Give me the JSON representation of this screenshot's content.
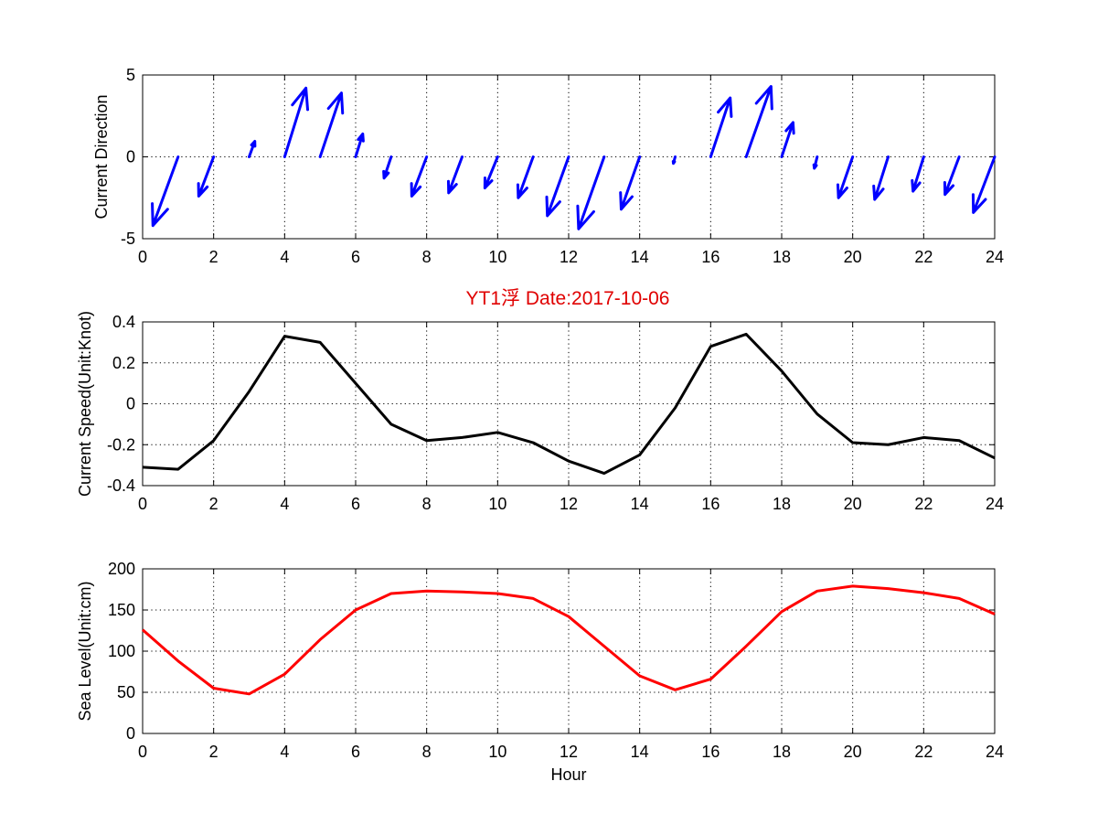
{
  "colors": {
    "title": "#e00000",
    "arrows": "#0000ff",
    "speed_line": "#000000",
    "sea_level_line": "#ff0000"
  },
  "title": "YT1浮    Date:2017-10-06",
  "chart_data": [
    {
      "type": "quiver",
      "ylabel": "Current Direction",
      "xlabel": "",
      "xlim": [
        0,
        24
      ],
      "ylim": [
        -5,
        5
      ],
      "xticks": [
        "0",
        "2",
        "4",
        "6",
        "8",
        "10",
        "12",
        "14",
        "16",
        "18",
        "20",
        "22",
        "24"
      ],
      "yticks": [
        "-5",
        "0",
        "5"
      ],
      "grid": true,
      "arrows": [
        {
          "x": 1,
          "u": -0.71,
          "v": -4.2
        },
        {
          "x": 2,
          "u": -0.42,
          "v": -2.4
        },
        {
          "x": 3,
          "u": 0.16,
          "v": 0.95
        },
        {
          "x": 4,
          "u": 0.6,
          "v": 4.2
        },
        {
          "x": 5,
          "u": 0.6,
          "v": 3.9
        },
        {
          "x": 6,
          "u": 0.2,
          "v": 1.4
        },
        {
          "x": 7,
          "u": -0.2,
          "v": -1.3
        },
        {
          "x": 8,
          "u": -0.42,
          "v": -2.4
        },
        {
          "x": 9,
          "u": -0.38,
          "v": -2.2
        },
        {
          "x": 10,
          "u": -0.36,
          "v": -1.9
        },
        {
          "x": 11,
          "u": -0.42,
          "v": -2.5
        },
        {
          "x": 12,
          "u": -0.6,
          "v": -3.6
        },
        {
          "x": 13,
          "u": -0.72,
          "v": -4.4
        },
        {
          "x": 14,
          "u": -0.52,
          "v": -3.2
        },
        {
          "x": 15,
          "u": -0.05,
          "v": -0.4
        },
        {
          "x": 16,
          "u": 0.55,
          "v": 3.6
        },
        {
          "x": 17,
          "u": 0.7,
          "v": 4.3
        },
        {
          "x": 18,
          "u": 0.32,
          "v": 2.1
        },
        {
          "x": 19,
          "u": -0.08,
          "v": -0.7
        },
        {
          "x": 20,
          "u": -0.4,
          "v": -2.5
        },
        {
          "x": 21,
          "u": -0.38,
          "v": -2.6
        },
        {
          "x": 22,
          "u": -0.3,
          "v": -2.1
        },
        {
          "x": 23,
          "u": -0.4,
          "v": -2.3
        },
        {
          "x": 24,
          "u": -0.6,
          "v": -3.4
        }
      ]
    },
    {
      "type": "line",
      "ylabel": "Current Speed(Unit:Knot)",
      "xlabel": "",
      "xlim": [
        0,
        24
      ],
      "ylim": [
        -0.4,
        0.4
      ],
      "xticks": [
        "0",
        "2",
        "4",
        "6",
        "8",
        "10",
        "12",
        "14",
        "16",
        "18",
        "20",
        "22",
        "24"
      ],
      "yticks": [
        "-0.4",
        "-0.2",
        "0",
        "0.2",
        "0.4"
      ],
      "grid": true,
      "x": [
        0,
        1,
        2,
        3,
        4,
        5,
        6,
        7,
        8,
        9,
        10,
        11,
        12,
        13,
        14,
        15,
        16,
        17,
        18,
        19,
        20,
        21,
        22,
        23,
        24
      ],
      "values": [
        -0.31,
        -0.32,
        -0.18,
        0.06,
        0.33,
        0.3,
        0.1,
        -0.1,
        -0.18,
        -0.165,
        -0.14,
        -0.19,
        -0.28,
        -0.34,
        -0.25,
        -0.02,
        0.28,
        0.34,
        0.16,
        -0.05,
        -0.19,
        -0.2,
        -0.165,
        -0.18,
        -0.265
      ]
    },
    {
      "type": "line",
      "ylabel": "Sea Level(Unit:cm)",
      "xlabel": "Hour",
      "xlim": [
        0,
        24
      ],
      "ylim": [
        0,
        200
      ],
      "xticks": [
        "0",
        "2",
        "4",
        "6",
        "8",
        "10",
        "12",
        "14",
        "16",
        "18",
        "20",
        "22",
        "24"
      ],
      "yticks": [
        "0",
        "50",
        "100",
        "150",
        "200"
      ],
      "grid": true,
      "x": [
        0,
        1,
        2,
        3,
        4,
        5,
        6,
        7,
        8,
        9,
        10,
        11,
        12,
        13,
        14,
        15,
        16,
        17,
        18,
        19,
        20,
        21,
        22,
        23,
        24
      ],
      "values": [
        126,
        88,
        55,
        48,
        72,
        114,
        150,
        170,
        173,
        172,
        170,
        164,
        142,
        106,
        70,
        53,
        66,
        106,
        148,
        173,
        179,
        176,
        171,
        164,
        145
      ]
    }
  ]
}
